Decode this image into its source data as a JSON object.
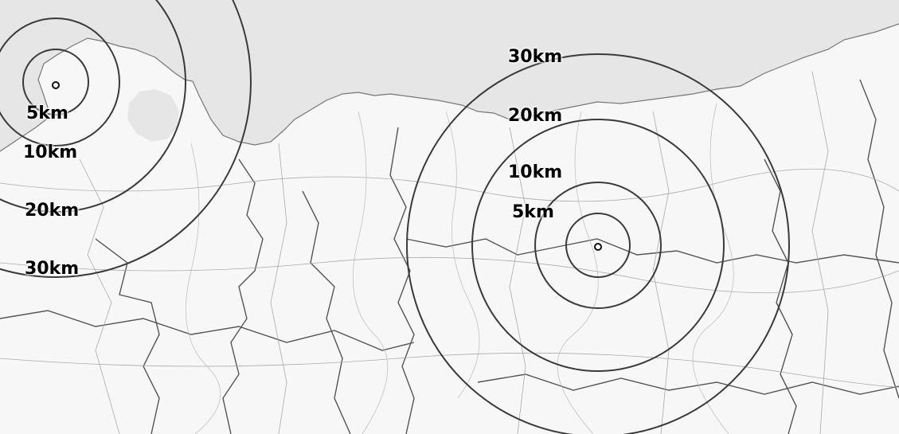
{
  "map": {
    "colors": {
      "sea": "#e6e6e6",
      "land": "#f7f7f7",
      "ring": "#3a3a3a",
      "border": "#555555"
    },
    "sites": [
      {
        "id": "west",
        "rings": [
          {
            "km": 5,
            "label": "5km"
          },
          {
            "km": 10,
            "label": "10km"
          },
          {
            "km": 20,
            "label": "20km"
          },
          {
            "km": 30,
            "label": "30km"
          }
        ]
      },
      {
        "id": "east",
        "rings": [
          {
            "km": 5,
            "label": "5km"
          },
          {
            "km": 10,
            "label": "10km"
          },
          {
            "km": 20,
            "label": "20km"
          },
          {
            "km": 30,
            "label": "30km"
          }
        ]
      }
    ]
  }
}
